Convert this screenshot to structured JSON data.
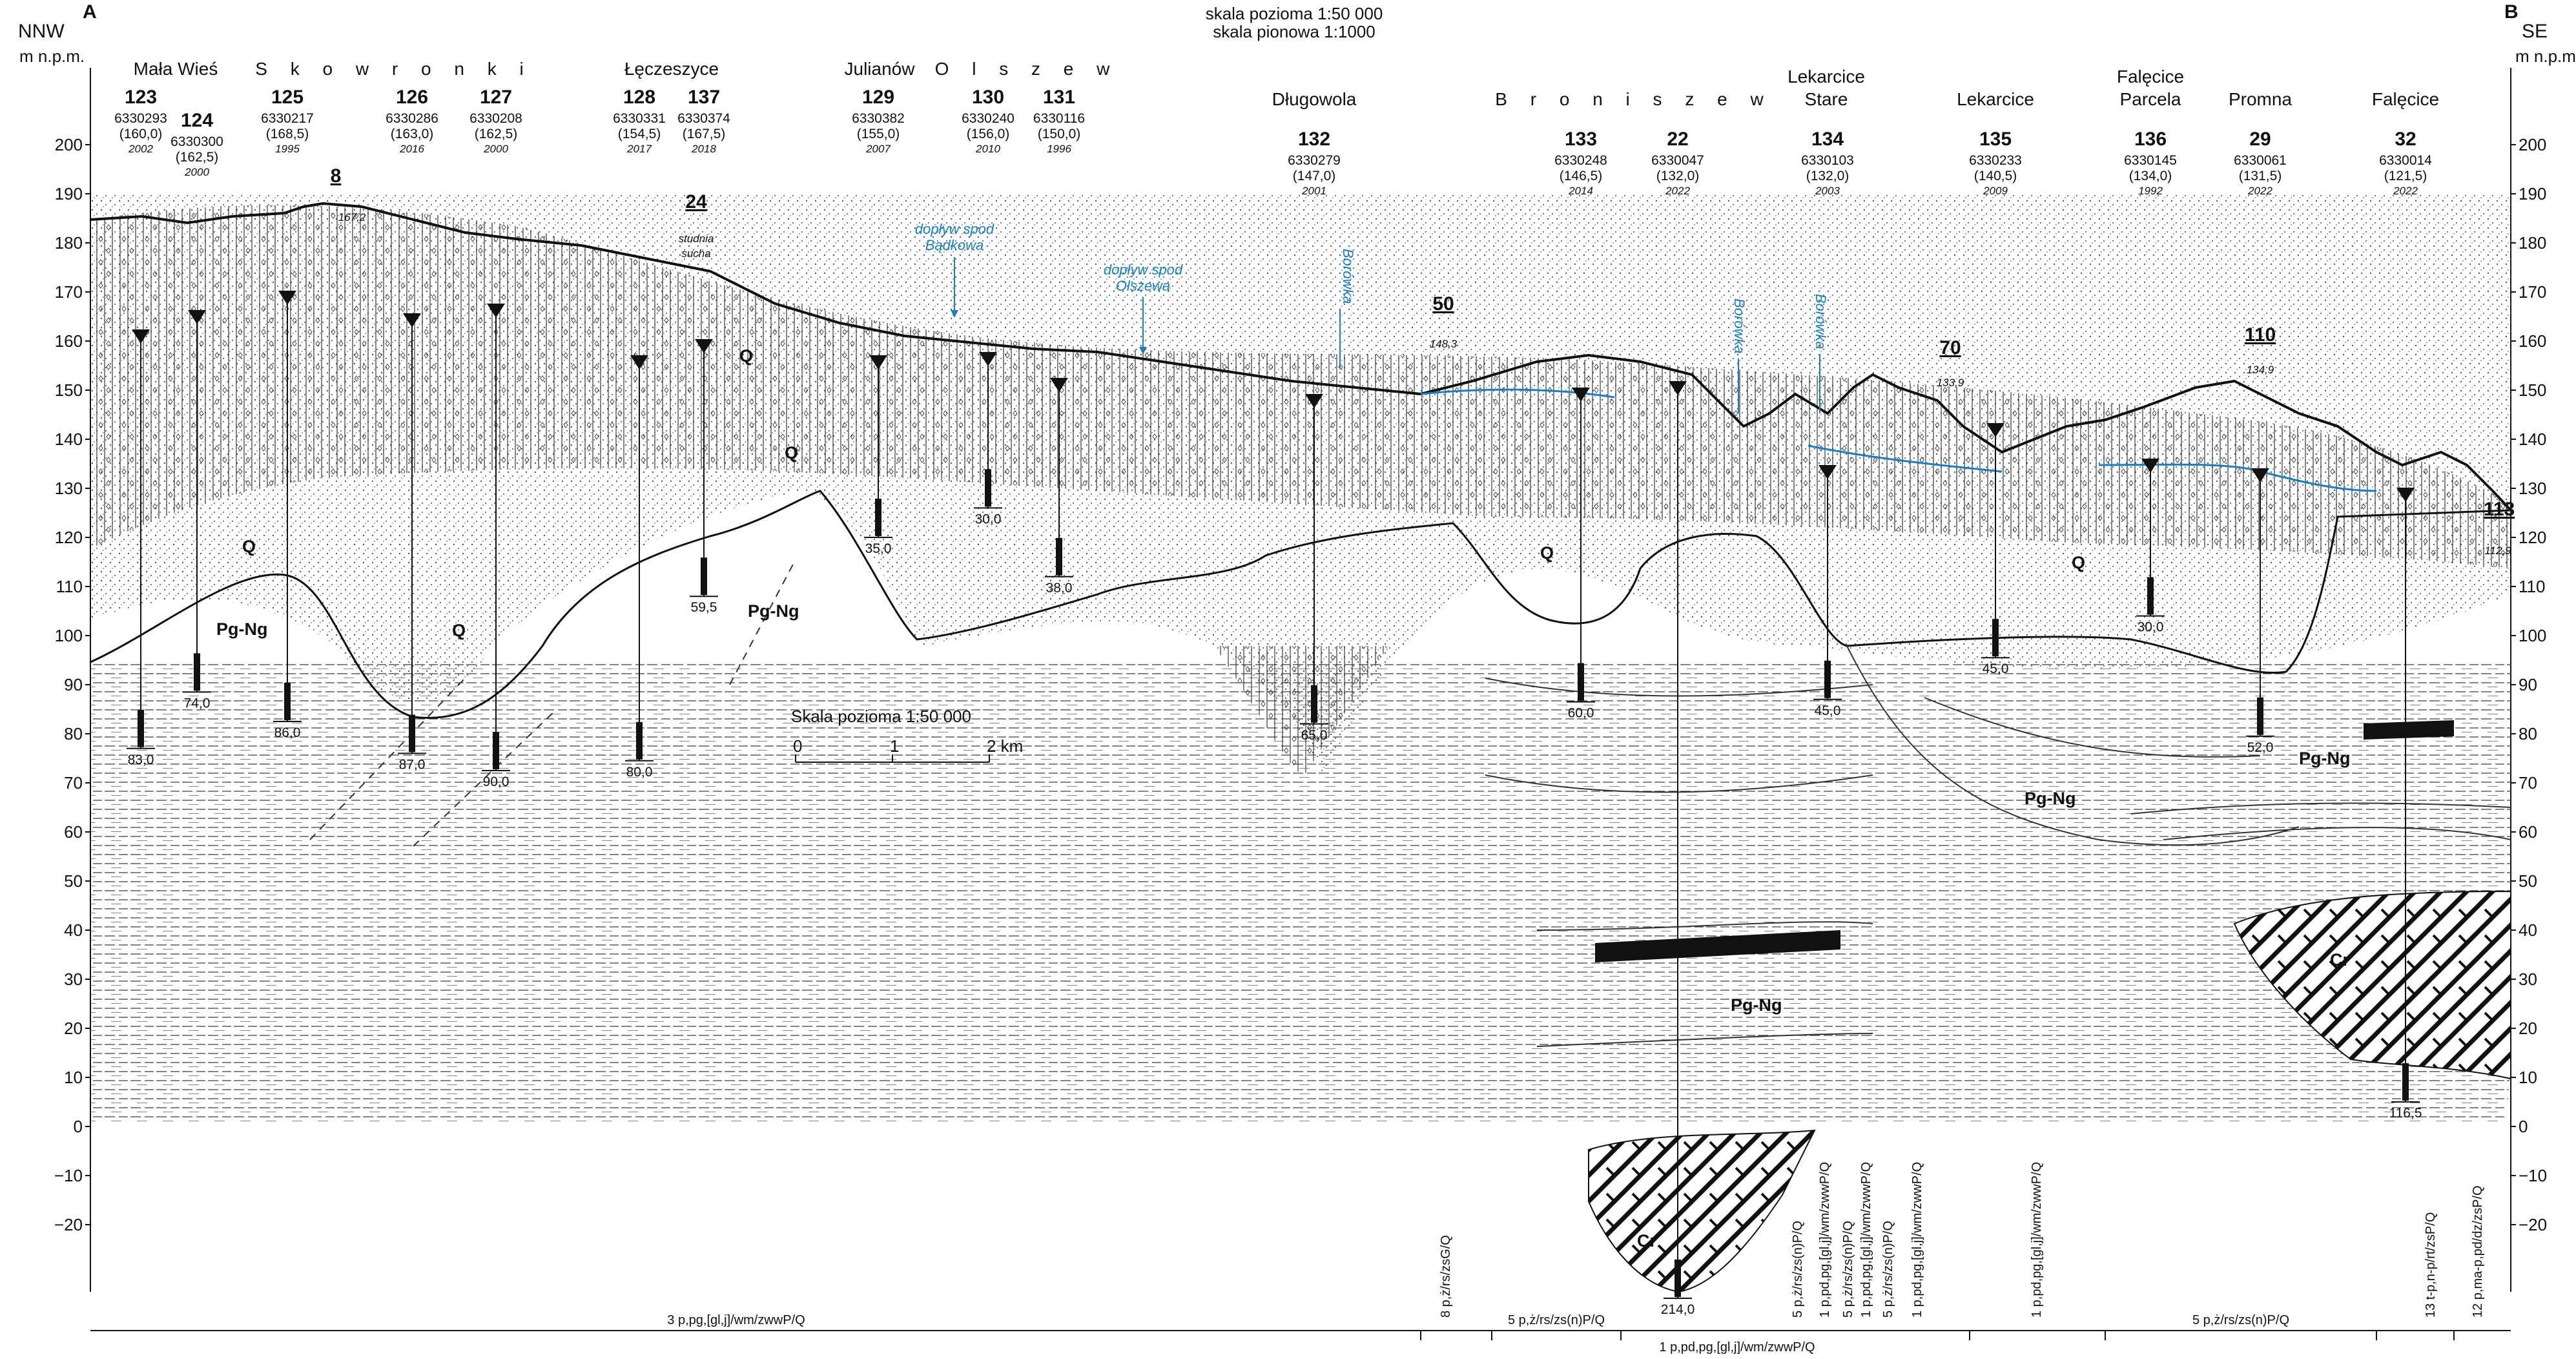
{
  "header": {
    "scale_horizontal": "skala pozioma 1:50 000",
    "scale_vertical": "skala pionowa 1:1000",
    "corner_left": "A",
    "corner_right": "B",
    "dir_left": "NNW",
    "dir_right": "SE",
    "unit_left": "m n.p.m.",
    "unit_right": "m n.p.m."
  },
  "axis_ticks": [
    "200",
    "190",
    "180",
    "170",
    "160",
    "150",
    "140",
    "130",
    "120",
    "110",
    "100",
    "90",
    "80",
    "70",
    "60",
    "50",
    "40",
    "30",
    "20",
    "10",
    "0",
    "−10",
    "−20"
  ],
  "localities": [
    {
      "name": "Mała Wieś"
    },
    {
      "name": "S k o w r o n k i"
    },
    {
      "name": "Łęczeszyce"
    },
    {
      "name": "Julianów"
    },
    {
      "name": "O l s z e w"
    },
    {
      "name": "Długowola"
    },
    {
      "name": "B r o n i s z e w"
    },
    {
      "name": "Lekarcice"
    },
    {
      "name": "Stare"
    },
    {
      "name": "Lekarcice"
    },
    {
      "name": "Falęcice"
    },
    {
      "name": "Parcela"
    },
    {
      "name": "Promna"
    },
    {
      "name": "Falęcice"
    }
  ],
  "wells": [
    {
      "no": "123",
      "id": "6330293",
      "elev": "(160,0)",
      "year": "2002",
      "depth": "83,0"
    },
    {
      "no": "124",
      "id": "6330300",
      "elev": "(162,5)",
      "year": "2000",
      "depth": "74,0"
    },
    {
      "no": "125",
      "id": "6330217",
      "elev": "(168,5)",
      "year": "1995",
      "depth": "86,0"
    },
    {
      "no": "126",
      "id": "6330286",
      "elev": "(163,0)",
      "year": "2016",
      "depth": "87,0"
    },
    {
      "no": "127",
      "id": "6330208",
      "elev": "(162,5)",
      "year": "2000",
      "depth": "90,0"
    },
    {
      "no": "128",
      "id": "6330331",
      "elev": "(154,5)",
      "year": "2017",
      "depth": "80,0"
    },
    {
      "no": "137",
      "id": "6330374",
      "elev": "(167,5)",
      "year": "2018",
      "depth": "59,5"
    },
    {
      "no": "129",
      "id": "6330382",
      "elev": "(155,0)",
      "year": "2007",
      "depth": "35,0"
    },
    {
      "no": "130",
      "id": "6330240",
      "elev": "(156,0)",
      "year": "2010",
      "depth": "30,0"
    },
    {
      "no": "131",
      "id": "6330116",
      "elev": "(150,0)",
      "year": "1996",
      "depth": "38,0"
    },
    {
      "no": "132",
      "id": "6330279",
      "elev": "(147,0)",
      "year": "2001",
      "depth": "65,0"
    },
    {
      "no": "133",
      "id": "6330248",
      "elev": "(146,5)",
      "year": "2014",
      "depth": "60,0"
    },
    {
      "no": "22",
      "id": "6330047",
      "elev": "(132,0)",
      "year": "2022",
      "depth": "214,0"
    },
    {
      "no": "134",
      "id": "6330103",
      "elev": "(132,0)",
      "year": "2003",
      "depth": "45,0"
    },
    {
      "no": "135",
      "id": "6330233",
      "elev": "(140,5)",
      "year": "2009",
      "depth": "45,0"
    },
    {
      "no": "136",
      "id": "6330145",
      "elev": "(134,0)",
      "year": "1992",
      "depth": "30,0"
    },
    {
      "no": "29",
      "id": "6330061",
      "elev": "(131,5)",
      "year": "2022",
      "depth": "52,0"
    },
    {
      "no": "32",
      "id": "6330014",
      "elev": "(121,5)",
      "year": "2022",
      "depth": "116,5"
    }
  ],
  "projected_wells": [
    {
      "no": "8",
      "elev": "167,2"
    },
    {
      "no": "24",
      "elev": "studnia"
    },
    {
      "no": "50",
      "elev": "148,3"
    },
    {
      "no": "70",
      "elev": "133,9"
    },
    {
      "no": "110",
      "elev": "134,9"
    },
    {
      "no": "113",
      "elev": "112,9"
    }
  ],
  "dry_well_note": "sucha",
  "streams": [
    {
      "label": "dopływ spod",
      "label2": "Bądkowa"
    },
    {
      "label": "dopływ spod",
      "label2": "Olszewa"
    },
    {
      "label": "Borówka"
    },
    {
      "label": "Borówka"
    },
    {
      "label": "Borówka"
    }
  ],
  "units": [
    "Q",
    "Q",
    "Q",
    "Q",
    "Q",
    "Q",
    "Q",
    "Pg-Ng",
    "Pg-Ng",
    "Pg-Ng",
    "Pg-Ng",
    "Pg-Ng",
    "Cr",
    "Cr"
  ],
  "scalebar": {
    "title": "Skala pozioma 1:50 000",
    "l0": "0",
    "l1": "1",
    "l2": "2 km"
  },
  "strat_top": [
    "3 p,pg,[gl,j]/wm/zwwP/Q",
    "5 p,ż/rs/zs(n)P/Q",
    "5 p,ż/rs/zs(n)P/Q"
  ],
  "strat_bottom": "1 p,pd,pg,[gl,j]/wm/zwwP/Q",
  "strat_vertical": [
    "8 p,ż/rs/zsG/Q",
    "5 p,ż/rs/zs(n)P/Q",
    "1 p,pd,pg,[gl,j]/wm/zwwP/Q",
    "5 p,ż/rs/zs(n)P/Q",
    "1 p,pd,pg,[gl,j]/wm/zwwP/Q",
    "5 p,ż/rs/zs(n)P/Q",
    "1 p,pd,pg,[gl,j]/wm/zwwP/Q",
    "1 p,pd,pg,[gl,j]/wm/zwwP/Q",
    "13 t-p,n-p/rt/zsP/Q",
    "12 p,ma-p,pd/dz/zsP/Q"
  ],
  "colors": {
    "water": "#1a7fc1",
    "line": "#111111"
  }
}
